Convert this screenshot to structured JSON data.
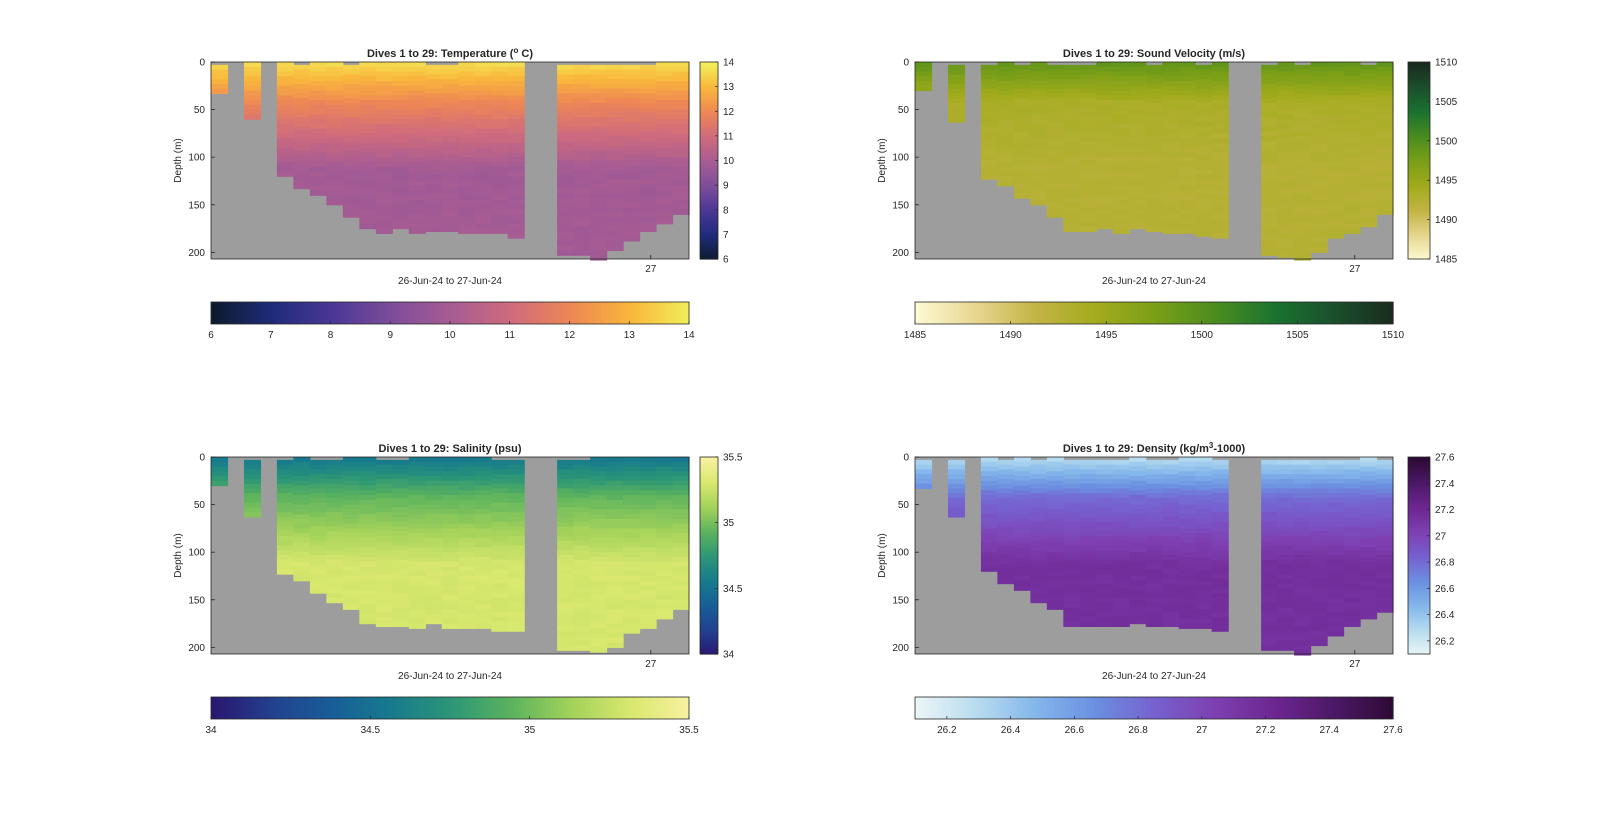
{
  "chart_data": [
    {
      "type": "heatmap",
      "title": "Dives 1 to 29: Temperature (",
      "title_sup": "o",
      "title_post": " C)",
      "xlabel": "26-Jun-24 to 27-Jun-24",
      "ylabel": "Depth (m)",
      "x_tick": "27",
      "y_ticks": [
        0,
        50,
        100,
        150,
        200
      ],
      "ylim": [
        0,
        207
      ],
      "colorbar_ticks": [
        "6",
        "7",
        "8",
        "9",
        "10",
        "11",
        "12",
        "13",
        "14"
      ],
      "clim": [
        6,
        14
      ],
      "colorscale": [
        "#0d1b2e",
        "#1f2c7a",
        "#4a3796",
        "#7d4d9a",
        "#a75c93",
        "#cf6b7d",
        "#ee8755",
        "#f9b73b",
        "#f2ef5c"
      ],
      "dives": 29,
      "surface_value": 13.6,
      "mid_value": 12.0,
      "deep_value": 9.9
    },
    {
      "type": "heatmap",
      "title": "Dives 1 to 29: Sound Velocity (m/s)",
      "title_sup": "",
      "title_post": "",
      "xlabel": "26-Jun-24 to 27-Jun-24",
      "ylabel": "Depth (m)",
      "x_tick": "27",
      "y_ticks": [
        0,
        50,
        100,
        150,
        200
      ],
      "ylim": [
        0,
        207
      ],
      "colorbar_ticks": [
        "1485",
        "1490",
        "1495",
        "1500",
        "1505",
        "1510"
      ],
      "clim": [
        1485,
        1510
      ],
      "colorscale": [
        "#fdf9d3",
        "#e6d68e",
        "#c2b445",
        "#a2ab1c",
        "#7a9f17",
        "#4b8c1f",
        "#1a7230",
        "#1b4f2c",
        "#1b2a1f"
      ],
      "dives": 29,
      "surface_value": 1499.0,
      "mid_value": 1493.5,
      "deep_value": 1492.5
    },
    {
      "type": "heatmap",
      "title": "Dives 1 to 29: Salinity (psu)",
      "title_sup": "",
      "title_post": "",
      "xlabel": "26-Jun-24 to 27-Jun-24",
      "ylabel": "Depth (m)",
      "x_tick": "27",
      "y_ticks": [
        0,
        50,
        100,
        150,
        200
      ],
      "ylim": [
        0,
        207
      ],
      "colorbar_ticks": [
        "34",
        "34.5",
        "35",
        "35.5"
      ],
      "clim": [
        34,
        35.5
      ],
      "colorscale": [
        "#2a1770",
        "#22418f",
        "#175e97",
        "#177b8d",
        "#2c9676",
        "#5cb35e",
        "#a3d25a",
        "#d9e86e",
        "#f8f1a2"
      ],
      "dives": 29,
      "surface_value": 34.55,
      "mid_value": 34.95,
      "deep_value": 35.3
    },
    {
      "type": "heatmap",
      "title": "Dives 1 to 29: Density (kg/m",
      "title_sup": "3",
      "title_post": "-1000)",
      "xlabel": "26-Jun-24 to 27-Jun-24",
      "ylabel": "Depth (m)",
      "x_tick": "27",
      "y_ticks": [
        0,
        50,
        100,
        150,
        200
      ],
      "ylim": [
        0,
        207
      ],
      "colorbar_ticks": [
        "26.2",
        "26.4",
        "26.6",
        "26.8",
        "27",
        "27.2",
        "27.4",
        "27.6"
      ],
      "clim": [
        26.1,
        27.6
      ],
      "colorscale": [
        "#eaf5f5",
        "#b7dcef",
        "#83b6ea",
        "#6b8fe0",
        "#7760cf",
        "#7e3fb1",
        "#6c2690",
        "#4c1866",
        "#2b0a33"
      ],
      "dives": 29,
      "surface_value": 26.3,
      "mid_value": 26.8,
      "deep_value": 27.15
    }
  ]
}
